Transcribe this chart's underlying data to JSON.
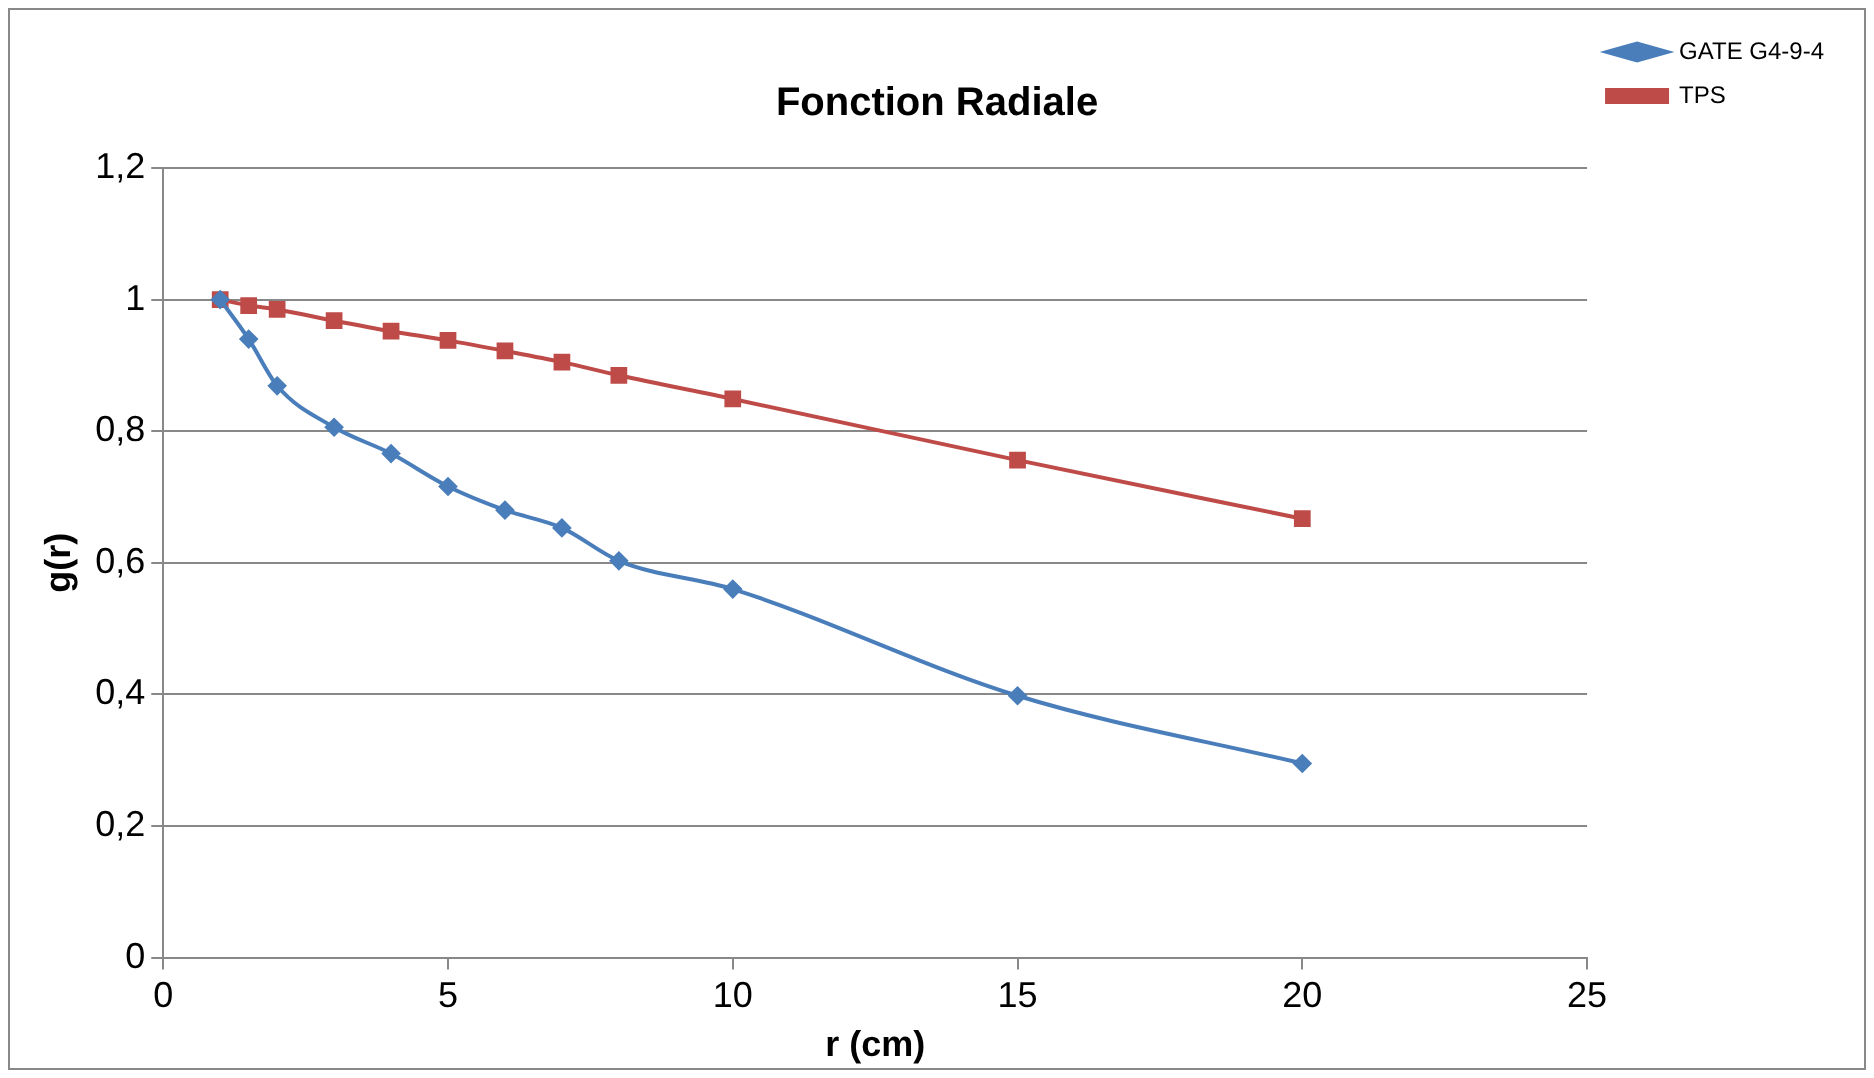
{
  "chart_data": {
    "type": "line",
    "title": "Fonction Radiale",
    "xlabel": "r (cm)",
    "ylabel": "g(r)",
    "x": [
      1,
      1.5,
      2,
      3,
      4,
      5,
      6,
      7,
      8,
      10,
      15,
      20
    ],
    "series": [
      {
        "name": "GATE G4-9-4",
        "color": "#4a7ebb",
        "marker": "diamond",
        "values": [
          1.0,
          0.94,
          0.869,
          0.806,
          0.766,
          0.716,
          0.68,
          0.653,
          0.603,
          0.56,
          0.398,
          0.295
        ]
      },
      {
        "name": "TPS",
        "color": "#be4b48",
        "marker": "square",
        "values": [
          1.0,
          0.991,
          0.985,
          0.968,
          0.952,
          0.938,
          0.922,
          0.905,
          0.885,
          0.849,
          0.756,
          0.667
        ]
      }
    ],
    "xlim": [
      0,
      25
    ],
    "xticks": [
      0,
      5,
      10,
      15,
      20,
      25
    ],
    "ylim": [
      0,
      1.2
    ],
    "yticks": [
      0,
      {
        "value": 0.2,
        "label": "0,2"
      },
      {
        "value": 0.4,
        "label": "0,4"
      },
      {
        "value": 0.6,
        "label": "0,6"
      },
      {
        "value": 0.8,
        "label": "0,8"
      },
      1,
      {
        "value": 1.2,
        "label": "1,2"
      }
    ],
    "grid": "y",
    "legend": "top right",
    "line_style": "solid"
  }
}
